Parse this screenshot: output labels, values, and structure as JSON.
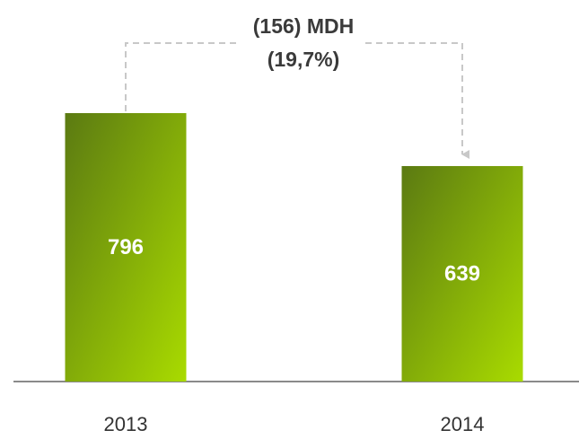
{
  "chart_data": {
    "type": "bar",
    "categories": [
      "2013",
      "2014"
    ],
    "values": [
      796,
      639
    ],
    "gradient_colors": [
      "#5b7a12",
      "#a9db00"
    ],
    "annotation": [
      "(156) MDH",
      "(19,7%)"
    ]
  }
}
